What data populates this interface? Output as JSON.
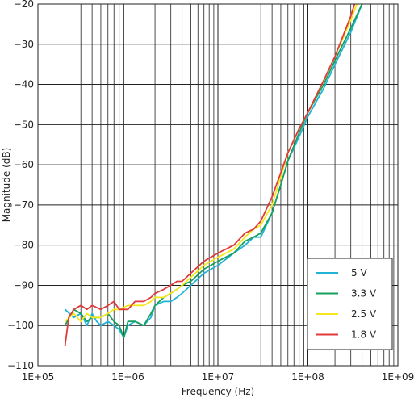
{
  "chart_data": {
    "type": "line",
    "title": "",
    "xlabel": "Frequency (Hz)",
    "ylabel": "Magnitude (dB)",
    "xscale": "log",
    "xlim": [
      100000,
      1000000000
    ],
    "ylim": [
      -110,
      -20
    ],
    "x_tick_labels": [
      "1E+05",
      "1E+06",
      "1E+07",
      "1E+08",
      "1E+09"
    ],
    "y_tick_labels": [
      "-20",
      "-30",
      "-40",
      "-50",
      "-60",
      "-70",
      "-80",
      "-90",
      "-100",
      "-110"
    ],
    "grid": true,
    "legend_position": "bottom-right",
    "series": [
      {
        "name": "5 V",
        "color": "#1fb4d6",
        "points": [
          [
            200000,
            -96
          ],
          [
            250000,
            -98
          ],
          [
            300000,
            -97
          ],
          [
            350000,
            -100
          ],
          [
            400000,
            -97
          ],
          [
            450000,
            -99
          ],
          [
            500000,
            -100
          ],
          [
            600000,
            -99
          ],
          [
            700000,
            -100
          ],
          [
            800000,
            -101
          ],
          [
            900000,
            -103
          ],
          [
            1000000,
            -100
          ],
          [
            1200000,
            -99
          ],
          [
            1500000,
            -100
          ],
          [
            1800000,
            -98
          ],
          [
            2000000,
            -95
          ],
          [
            2500000,
            -94
          ],
          [
            3000000,
            -94
          ],
          [
            3500000,
            -93
          ],
          [
            4000000,
            -92
          ],
          [
            5000000,
            -90
          ],
          [
            7000000,
            -87
          ],
          [
            10000000,
            -85
          ],
          [
            15000000,
            -82
          ],
          [
            20000000,
            -80
          ],
          [
            25000000,
            -78
          ],
          [
            30000000,
            -78
          ],
          [
            40000000,
            -72
          ],
          [
            50000000,
            -65
          ],
          [
            60000000,
            -59
          ],
          [
            80000000,
            -53
          ],
          [
            100000000,
            -48
          ],
          [
            150000000,
            -41
          ],
          [
            200000000,
            -35
          ],
          [
            300000000,
            -27
          ],
          [
            400000000,
            -20
          ]
        ]
      },
      {
        "name": "3.3 V",
        "color": "#17a05d",
        "points": [
          [
            200000,
            -100
          ],
          [
            250000,
            -96
          ],
          [
            300000,
            -97
          ],
          [
            350000,
            -99
          ],
          [
            400000,
            -98
          ],
          [
            500000,
            -98
          ],
          [
            600000,
            -97
          ],
          [
            700000,
            -99
          ],
          [
            800000,
            -100
          ],
          [
            900000,
            -103
          ],
          [
            1000000,
            -99
          ],
          [
            1200000,
            -99
          ],
          [
            1500000,
            -100
          ],
          [
            1800000,
            -97
          ],
          [
            2000000,
            -95
          ],
          [
            2500000,
            -93
          ],
          [
            3000000,
            -92
          ],
          [
            3500000,
            -91
          ],
          [
            4000000,
            -90
          ],
          [
            5000000,
            -89
          ],
          [
            7000000,
            -86
          ],
          [
            10000000,
            -84
          ],
          [
            15000000,
            -82
          ],
          [
            20000000,
            -79
          ],
          [
            25000000,
            -78
          ],
          [
            30000000,
            -77
          ],
          [
            40000000,
            -72
          ],
          [
            50000000,
            -65
          ],
          [
            60000000,
            -59
          ],
          [
            80000000,
            -52
          ],
          [
            100000000,
            -47
          ],
          [
            150000000,
            -40
          ],
          [
            200000000,
            -34
          ],
          [
            300000000,
            -26
          ],
          [
            400000000,
            -20
          ]
        ]
      },
      {
        "name": "2.5 V",
        "color": "#f5e71a",
        "points": [
          [
            200000,
            -99
          ],
          [
            250000,
            -97
          ],
          [
            300000,
            -99
          ],
          [
            350000,
            -97
          ],
          [
            400000,
            -98
          ],
          [
            500000,
            -98
          ],
          [
            600000,
            -97
          ],
          [
            700000,
            -96
          ],
          [
            800000,
            -96
          ],
          [
            1000000,
            -95
          ],
          [
            1200000,
            -95
          ],
          [
            1500000,
            -95
          ],
          [
            1800000,
            -94
          ],
          [
            2000000,
            -93
          ],
          [
            2500000,
            -93
          ],
          [
            3000000,
            -92
          ],
          [
            3500000,
            -91
          ],
          [
            4000000,
            -90
          ],
          [
            5000000,
            -88
          ],
          [
            7000000,
            -85
          ],
          [
            10000000,
            -83
          ],
          [
            15000000,
            -81
          ],
          [
            20000000,
            -78
          ],
          [
            25000000,
            -76
          ],
          [
            30000000,
            -75
          ],
          [
            40000000,
            -70
          ],
          [
            50000000,
            -63
          ],
          [
            60000000,
            -57
          ],
          [
            80000000,
            -51
          ],
          [
            100000000,
            -47
          ],
          [
            150000000,
            -39
          ],
          [
            200000000,
            -33
          ],
          [
            300000000,
            -24
          ],
          [
            350000000,
            -20
          ]
        ]
      },
      {
        "name": "1.8 V",
        "color": "#e03a3a",
        "points": [
          [
            200000,
            -105
          ],
          [
            220000,
            -98
          ],
          [
            250000,
            -96
          ],
          [
            300000,
            -95
          ],
          [
            350000,
            -96
          ],
          [
            400000,
            -95
          ],
          [
            500000,
            -96
          ],
          [
            600000,
            -95
          ],
          [
            700000,
            -94
          ],
          [
            800000,
            -96
          ],
          [
            1000000,
            -96
          ],
          [
            1200000,
            -94
          ],
          [
            1500000,
            -94
          ],
          [
            1800000,
            -93
          ],
          [
            2000000,
            -92
          ],
          [
            2500000,
            -91
          ],
          [
            3000000,
            -90
          ],
          [
            3500000,
            -89
          ],
          [
            4000000,
            -89
          ],
          [
            5000000,
            -87
          ],
          [
            7000000,
            -84
          ],
          [
            10000000,
            -82
          ],
          [
            15000000,
            -80
          ],
          [
            20000000,
            -77
          ],
          [
            25000000,
            -76
          ],
          [
            30000000,
            -74
          ],
          [
            40000000,
            -68
          ],
          [
            50000000,
            -62
          ],
          [
            60000000,
            -57
          ],
          [
            80000000,
            -51
          ],
          [
            100000000,
            -47
          ],
          [
            150000000,
            -39
          ],
          [
            200000000,
            -33
          ],
          [
            300000000,
            -23
          ],
          [
            330000000,
            -20
          ]
        ]
      }
    ]
  }
}
